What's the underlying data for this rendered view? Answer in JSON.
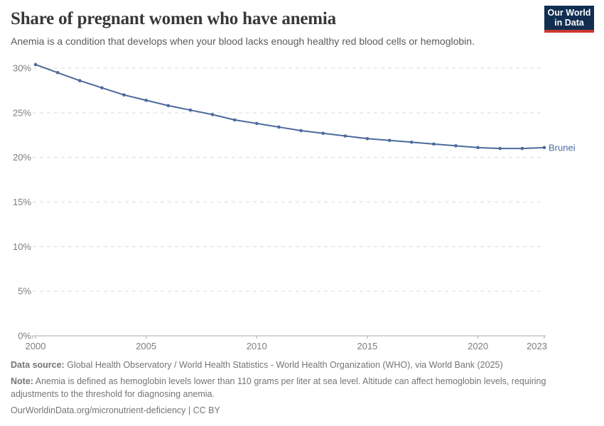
{
  "header": {
    "title": "Share of pregnant women who have anemia",
    "subtitle": "Anemia is a condition that develops when your blood lacks enough healthy red blood cells or hemoglobin.",
    "logo": {
      "line1": "Our World",
      "line2": "in Data"
    }
  },
  "chart_data": {
    "type": "line",
    "title": "Share of pregnant women who have anemia",
    "x": [
      2000,
      2001,
      2002,
      2003,
      2004,
      2005,
      2006,
      2007,
      2008,
      2009,
      2010,
      2011,
      2012,
      2013,
      2014,
      2015,
      2016,
      2017,
      2018,
      2019,
      2020,
      2021,
      2022,
      2023
    ],
    "series": [
      {
        "name": "Brunei",
        "values": [
          30.4,
          29.5,
          28.6,
          27.8,
          27.0,
          26.4,
          25.8,
          25.3,
          24.8,
          24.2,
          23.8,
          23.4,
          23.0,
          22.7,
          22.4,
          22.1,
          21.9,
          21.7,
          21.5,
          21.3,
          21.1,
          21.0,
          21.0,
          21.1
        ]
      }
    ],
    "xlabel": "",
    "ylabel": "",
    "xlim": [
      2000,
      2023
    ],
    "ylim": [
      0,
      30
    ],
    "x_ticks": [
      2000,
      2005,
      2010,
      2015,
      2020,
      2023
    ],
    "y_ticks": [
      0,
      5,
      10,
      15,
      20,
      25,
      30
    ],
    "y_tick_suffix": "%",
    "grid": "dashed horizontal",
    "legend_position": "end-of-line-label",
    "marker": "dot"
  },
  "footer": {
    "data_source_label": "Data source:",
    "data_source": "Global Health Observatory / World Health Statistics - World Health Organization (WHO), via World Bank (2025)",
    "note_label": "Note:",
    "note": "Anemia is defined as hemoglobin levels lower than 110 grams per liter at sea level. Altitude can affect hemoglobin levels, requiring adjustments to the threshold for diagnosing anemia.",
    "url": "OurWorldinData.org/micronutrient-deficiency",
    "separator": "|",
    "license": "CC BY"
  },
  "colors": {
    "line": "#4c6a9c",
    "grid": "#dcdcdc",
    "axis": "#a9a9a9",
    "tick_label": "#7d7d7d",
    "title": "#383838",
    "subtitle": "#5b5b5b",
    "footer": "#757575",
    "logo_bg": "#112e51",
    "logo_red": "#cc382e"
  }
}
